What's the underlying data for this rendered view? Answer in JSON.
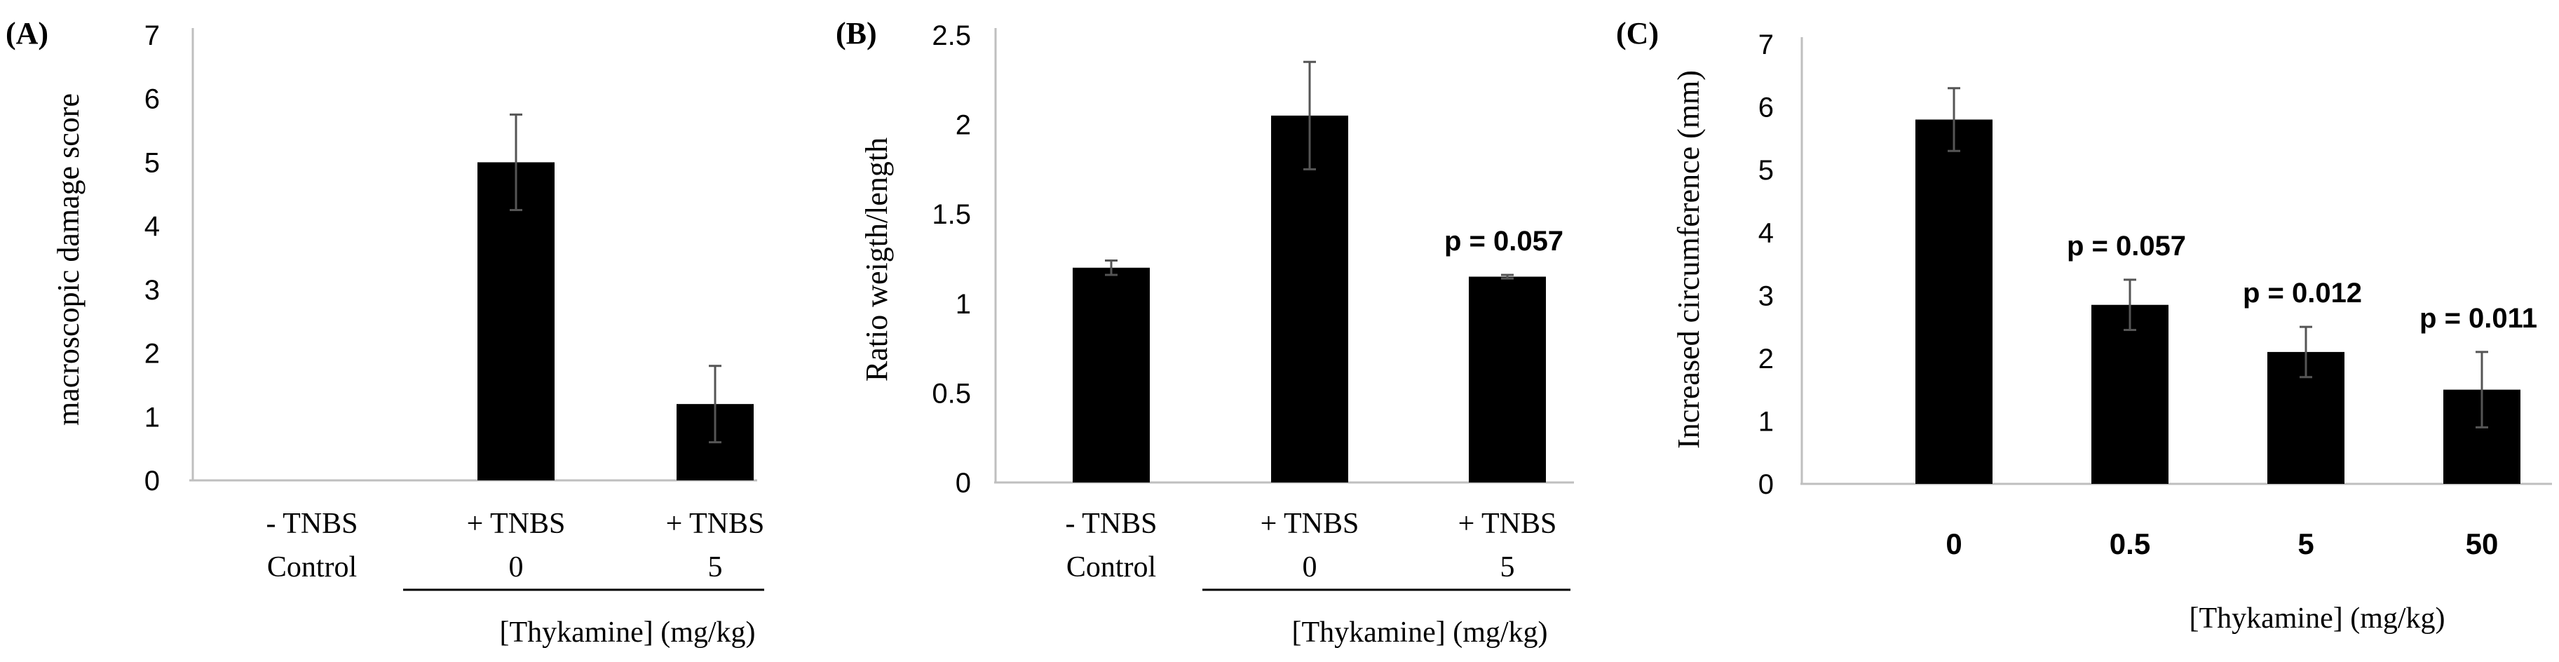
{
  "figure": {
    "xlabel": "[Thykamine] (mg/kg)"
  },
  "chart_data": [
    {
      "panel": "(A)",
      "type": "bar",
      "ylabel": "macroscopic damage score",
      "ylim": [
        0,
        7
      ],
      "yticks": [
        "0",
        "1",
        "2",
        "3",
        "4",
        "5",
        "6",
        "7"
      ],
      "categories": [
        {
          "line1": "- TNBS",
          "line2": "Control"
        },
        {
          "line1": "+ TNBS",
          "line2": "0"
        },
        {
          "line1": "+ TNBS",
          "line2": "5"
        }
      ],
      "values": [
        0,
        5.0,
        1.2
      ],
      "errors": [
        0,
        0.75,
        0.6
      ],
      "annotations": [],
      "xlabel": "[Thykamine] (mg/kg)"
    },
    {
      "panel": "(B)",
      "type": "bar",
      "ylabel": "Ratio weigth/length",
      "ylim": [
        0,
        2.5
      ],
      "yticks": [
        "0",
        "0.5",
        "1",
        "1.5",
        "2",
        "2.5"
      ],
      "categories": [
        {
          "line1": "- TNBS",
          "line2": "Control"
        },
        {
          "line1": "+ TNBS",
          "line2": "0"
        },
        {
          "line1": "+ TNBS",
          "line2": "5"
        }
      ],
      "values": [
        1.2,
        2.05,
        1.15
      ],
      "errors": [
        0.04,
        0.3,
        0.01
      ],
      "annotations": [
        "",
        "",
        "p = 0.057"
      ],
      "xlabel": "[Thykamine] (mg/kg)"
    },
    {
      "panel": "(C)",
      "type": "bar",
      "ylabel": "Increased circumference (mm)",
      "ylim": [
        0,
        7
      ],
      "yticks": [
        "0",
        "1",
        "2",
        "3",
        "4",
        "5",
        "6",
        "7"
      ],
      "categories": [
        {
          "line1": "0",
          "line2": ""
        },
        {
          "line1": "0.5",
          "line2": ""
        },
        {
          "line1": "5",
          "line2": ""
        },
        {
          "line1": "50",
          "line2": ""
        }
      ],
      "values": [
        5.8,
        2.85,
        2.1,
        1.5
      ],
      "errors": [
        0.5,
        0.4,
        0.4,
        0.6
      ],
      "annotations": [
        "",
        "p = 0.057",
        "p = 0.012",
        "p = 0.011"
      ],
      "xlabel": "[Thykamine] (mg/kg)"
    }
  ]
}
